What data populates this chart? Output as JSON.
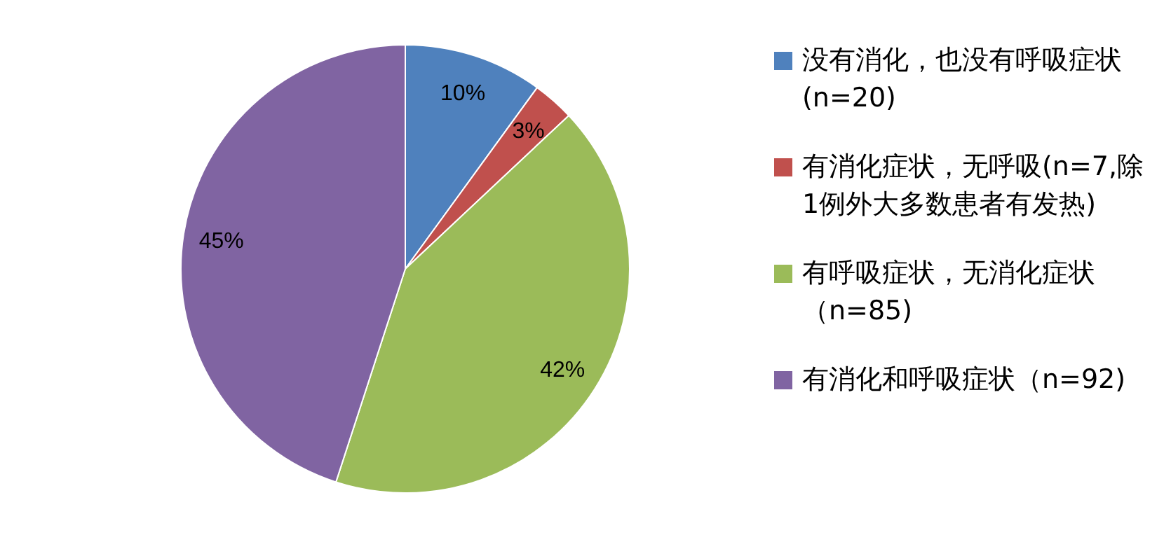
{
  "chart_data": {
    "type": "pie",
    "categories": [
      "没有消化，也没有呼吸症状(n=20)",
      "有消化症状，无呼吸(n=7,除1例外大多数患者有发热)",
      "有呼吸症状，无消化症状（n=85)",
      "有消化和呼吸症状（n=92)"
    ],
    "values": [
      10,
      3,
      42,
      45
    ],
    "colors": [
      "#4f81bd",
      "#c0504d",
      "#9bbb59",
      "#8064a2"
    ],
    "value_labels": [
      "10%",
      "3%",
      "42%",
      "45%"
    ],
    "legend": "right"
  }
}
